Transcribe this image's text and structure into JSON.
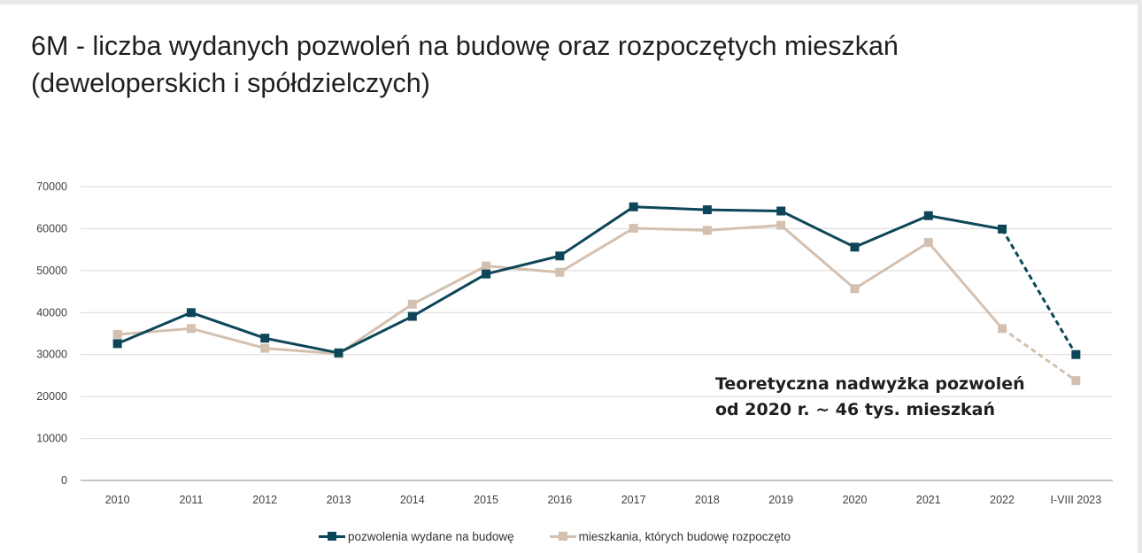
{
  "title_lines": [
    "6M - liczba wydanych pozwoleń na budowę oraz rozpoczętych mieszkań",
    "(deweloperskich i spółdzielczych)"
  ],
  "annotation_lines": [
    "Teoretyczna nadwyżka pozwoleń",
    "od 2020 r. ~ 46 tys. mieszkań"
  ],
  "legend": [
    {
      "label": "pozwolenia wydane na budowę",
      "color": "#0d4658"
    },
    {
      "label": "mieszkania, których budowę rozpoczęto",
      "color": "#d3c0b0"
    }
  ],
  "chart_data": {
    "type": "line",
    "title": "6M - liczba wydanych pozwoleń na budowę oraz rozpoczętych mieszkań (deweloperskich i spółdzielczych)",
    "xlabel": "",
    "ylabel": "",
    "categories": [
      "2010",
      "2011",
      "2012",
      "2013",
      "2014",
      "2015",
      "2016",
      "2017",
      "2018",
      "2019",
      "2020",
      "2021",
      "2022",
      "I-VIII 2023"
    ],
    "ylim": [
      0,
      70000
    ],
    "yticks": [
      0,
      10000,
      20000,
      30000,
      40000,
      50000,
      60000,
      70000
    ],
    "grid": true,
    "legend_position": "bottom",
    "series": [
      {
        "name": "pozwolenia wydane na budowę",
        "color": "#0d4658",
        "marker": "square",
        "dashed_last_segment": true,
        "values": [
          32600,
          40000,
          33900,
          30400,
          39100,
          49200,
          53500,
          65200,
          64500,
          64200,
          55600,
          63100,
          59900,
          30000
        ]
      },
      {
        "name": "mieszkania, których budowę rozpoczęto",
        "color": "#d3c0b0",
        "marker": "square",
        "dashed_last_segment": true,
        "values": [
          34800,
          36200,
          31500,
          30200,
          42000,
          51100,
          49600,
          60100,
          59600,
          60800,
          45700,
          56700,
          36200,
          23800
        ]
      }
    ]
  }
}
